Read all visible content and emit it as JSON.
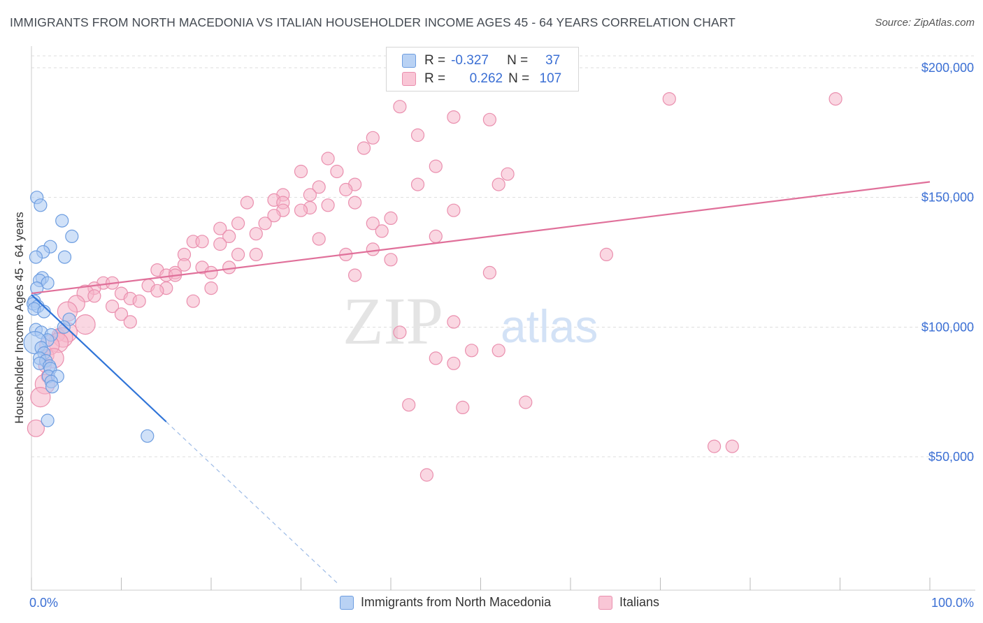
{
  "title": "IMMIGRANTS FROM NORTH MACEDONIA VS ITALIAN HOUSEHOLDER INCOME AGES 45 - 64 YEARS CORRELATION CHART",
  "source": "Source: ZipAtlas.com",
  "watermark": {
    "zip": "ZIP",
    "atlas": "atlas"
  },
  "colors": {
    "blue_fill": "#a9c8f2",
    "blue_stroke": "#6d9de0",
    "blue_line": "#2f74d8",
    "pink_fill": "#f6b7ca",
    "pink_stroke": "#ea8fae",
    "pink_line": "#e0709a",
    "axis_text": "#3b6fd4",
    "grid": "#dddddd"
  },
  "stats": {
    "r_label": "R =",
    "n_label": "N =",
    "series1": {
      "r": "-0.327",
      "n": "37"
    },
    "series2": {
      "r": "0.262",
      "n": "107"
    }
  },
  "chart_data": {
    "type": "scatter",
    "title": "IMMIGRANTS FROM NORTH MACEDONIA VS ITALIAN HOUSEHOLDER INCOME AGES 45 - 64 YEARS CORRELATION CHART",
    "xlabel": "",
    "ylabel": "Householder Income Ages 45 - 64 years",
    "xlim": [
      0,
      100
    ],
    "ylim": [
      0,
      210000
    ],
    "x_tick_labels": [
      "0.0%",
      "100.0%"
    ],
    "y_ticks": [
      50000,
      100000,
      150000,
      200000
    ],
    "y_tick_labels": [
      "$50,000",
      "$100,000",
      "$150,000",
      "$200,000"
    ],
    "grid": true,
    "legend_position": "bottom",
    "series": [
      {
        "name": "Immigrants from North Macedonia",
        "color": "blue",
        "trend": {
          "x0": 0,
          "y0": 112500,
          "x1": 15,
          "y1": 63500,
          "dash_to_x": 34
        },
        "points": [
          {
            "x": 0.6,
            "y": 150000,
            "s": 9
          },
          {
            "x": 1.0,
            "y": 147000,
            "s": 9
          },
          {
            "x": 3.4,
            "y": 141000,
            "s": 9
          },
          {
            "x": 4.5,
            "y": 135000,
            "s": 9
          },
          {
            "x": 2.1,
            "y": 131000,
            "s": 9
          },
          {
            "x": 1.3,
            "y": 129000,
            "s": 9
          },
          {
            "x": 0.5,
            "y": 127000,
            "s": 9
          },
          {
            "x": 3.7,
            "y": 127000,
            "s": 9
          },
          {
            "x": 1.2,
            "y": 119000,
            "s": 9
          },
          {
            "x": 0.9,
            "y": 118000,
            "s": 9
          },
          {
            "x": 1.8,
            "y": 117000,
            "s": 9
          },
          {
            "x": 0.6,
            "y": 115000,
            "s": 9
          },
          {
            "x": 0.3,
            "y": 110000,
            "s": 9
          },
          {
            "x": 0.2,
            "y": 109000,
            "s": 9
          },
          {
            "x": 0.7,
            "y": 108000,
            "s": 9
          },
          {
            "x": 0.3,
            "y": 107000,
            "s": 9
          },
          {
            "x": 1.4,
            "y": 106000,
            "s": 9
          },
          {
            "x": 4.2,
            "y": 103000,
            "s": 9
          },
          {
            "x": 3.6,
            "y": 100000,
            "s": 9
          },
          {
            "x": 0.5,
            "y": 99000,
            "s": 9
          },
          {
            "x": 1.1,
            "y": 98000,
            "s": 9
          },
          {
            "x": 2.2,
            "y": 97000,
            "s": 9
          },
          {
            "x": 1.8,
            "y": 95000,
            "s": 9
          },
          {
            "x": 0.4,
            "y": 94000,
            "s": 16
          },
          {
            "x": 1.1,
            "y": 92000,
            "s": 9
          },
          {
            "x": 1.4,
            "y": 90000,
            "s": 9
          },
          {
            "x": 0.9,
            "y": 88000,
            "s": 9
          },
          {
            "x": 1.6,
            "y": 87000,
            "s": 9
          },
          {
            "x": 0.9,
            "y": 86000,
            "s": 9
          },
          {
            "x": 2.0,
            "y": 85000,
            "s": 9
          },
          {
            "x": 2.1,
            "y": 84000,
            "s": 9
          },
          {
            "x": 1.9,
            "y": 81000,
            "s": 9
          },
          {
            "x": 2.9,
            "y": 81000,
            "s": 9
          },
          {
            "x": 2.2,
            "y": 79000,
            "s": 9
          },
          {
            "x": 2.3,
            "y": 77000,
            "s": 9
          },
          {
            "x": 1.8,
            "y": 64000,
            "s": 9
          },
          {
            "x": 12.9,
            "y": 58000,
            "s": 9
          }
        ]
      },
      {
        "name": "Italians",
        "color": "pink",
        "trend": {
          "x0": 0,
          "y0": 113000,
          "x1": 100,
          "y1": 156000
        },
        "points": [
          {
            "x": 41,
            "y": 185000,
            "s": 9
          },
          {
            "x": 47,
            "y": 181000,
            "s": 9
          },
          {
            "x": 51,
            "y": 180000,
            "s": 9
          },
          {
            "x": 71,
            "y": 188000,
            "s": 9
          },
          {
            "x": 89.5,
            "y": 188000,
            "s": 9
          },
          {
            "x": 43,
            "y": 174000,
            "s": 9
          },
          {
            "x": 38,
            "y": 173000,
            "s": 9
          },
          {
            "x": 37,
            "y": 169000,
            "s": 9
          },
          {
            "x": 33,
            "y": 165000,
            "s": 9
          },
          {
            "x": 45,
            "y": 162000,
            "s": 9
          },
          {
            "x": 30,
            "y": 160000,
            "s": 9
          },
          {
            "x": 34,
            "y": 160000,
            "s": 9
          },
          {
            "x": 53,
            "y": 159000,
            "s": 9
          },
          {
            "x": 36,
            "y": 155000,
            "s": 9
          },
          {
            "x": 43,
            "y": 155000,
            "s": 9
          },
          {
            "x": 52,
            "y": 155000,
            "s": 9
          },
          {
            "x": 32,
            "y": 154000,
            "s": 9
          },
          {
            "x": 35,
            "y": 153000,
            "s": 9
          },
          {
            "x": 28,
            "y": 151000,
            "s": 9
          },
          {
            "x": 31,
            "y": 151000,
            "s": 9
          },
          {
            "x": 27,
            "y": 149000,
            "s": 9
          },
          {
            "x": 24,
            "y": 148000,
            "s": 9
          },
          {
            "x": 28,
            "y": 148000,
            "s": 9
          },
          {
            "x": 36,
            "y": 148000,
            "s": 9
          },
          {
            "x": 33,
            "y": 147000,
            "s": 9
          },
          {
            "x": 31,
            "y": 146000,
            "s": 9
          },
          {
            "x": 28,
            "y": 145000,
            "s": 9
          },
          {
            "x": 30,
            "y": 145000,
            "s": 9
          },
          {
            "x": 47,
            "y": 145000,
            "s": 9
          },
          {
            "x": 27,
            "y": 143000,
            "s": 9
          },
          {
            "x": 40,
            "y": 142000,
            "s": 9
          },
          {
            "x": 23,
            "y": 140000,
            "s": 9
          },
          {
            "x": 26,
            "y": 140000,
            "s": 9
          },
          {
            "x": 38,
            "y": 140000,
            "s": 9
          },
          {
            "x": 21,
            "y": 138000,
            "s": 9
          },
          {
            "x": 39,
            "y": 137000,
            "s": 9
          },
          {
            "x": 25,
            "y": 136000,
            "s": 9
          },
          {
            "x": 22,
            "y": 135000,
            "s": 9
          },
          {
            "x": 32,
            "y": 134000,
            "s": 9
          },
          {
            "x": 45,
            "y": 135000,
            "s": 9
          },
          {
            "x": 18,
            "y": 133000,
            "s": 9
          },
          {
            "x": 19,
            "y": 133000,
            "s": 9
          },
          {
            "x": 21,
            "y": 132000,
            "s": 9
          },
          {
            "x": 38,
            "y": 130000,
            "s": 9
          },
          {
            "x": 17,
            "y": 128000,
            "s": 9
          },
          {
            "x": 23,
            "y": 128000,
            "s": 9
          },
          {
            "x": 25,
            "y": 128000,
            "s": 9
          },
          {
            "x": 35,
            "y": 128000,
            "s": 9
          },
          {
            "x": 64,
            "y": 128000,
            "s": 9
          },
          {
            "x": 40,
            "y": 126000,
            "s": 9
          },
          {
            "x": 17,
            "y": 124000,
            "s": 9
          },
          {
            "x": 19,
            "y": 123000,
            "s": 9
          },
          {
            "x": 22,
            "y": 123000,
            "s": 9
          },
          {
            "x": 14,
            "y": 122000,
            "s": 9
          },
          {
            "x": 16,
            "y": 121000,
            "s": 9
          },
          {
            "x": 20,
            "y": 121000,
            "s": 9
          },
          {
            "x": 15,
            "y": 120000,
            "s": 9
          },
          {
            "x": 51,
            "y": 121000,
            "s": 9
          },
          {
            "x": 16,
            "y": 120000,
            "s": 9
          },
          {
            "x": 36,
            "y": 120000,
            "s": 9
          },
          {
            "x": 8,
            "y": 117000,
            "s": 9
          },
          {
            "x": 9,
            "y": 117000,
            "s": 9
          },
          {
            "x": 13,
            "y": 116000,
            "s": 9
          },
          {
            "x": 15,
            "y": 115000,
            "s": 9
          },
          {
            "x": 20,
            "y": 115000,
            "s": 9
          },
          {
            "x": 7,
            "y": 115000,
            "s": 9
          },
          {
            "x": 14,
            "y": 114000,
            "s": 9
          },
          {
            "x": 10,
            "y": 113000,
            "s": 9
          },
          {
            "x": 6,
            "y": 113000,
            "s": 12
          },
          {
            "x": 7,
            "y": 112000,
            "s": 9
          },
          {
            "x": 11,
            "y": 111000,
            "s": 9
          },
          {
            "x": 12,
            "y": 110000,
            "s": 9
          },
          {
            "x": 18,
            "y": 110000,
            "s": 9
          },
          {
            "x": 5,
            "y": 109000,
            "s": 12
          },
          {
            "x": 9,
            "y": 108000,
            "s": 9
          },
          {
            "x": 4,
            "y": 106000,
            "s": 14
          },
          {
            "x": 10,
            "y": 105000,
            "s": 9
          },
          {
            "x": 11,
            "y": 102000,
            "s": 9
          },
          {
            "x": 6,
            "y": 101000,
            "s": 14
          },
          {
            "x": 47,
            "y": 102000,
            "s": 9
          },
          {
            "x": 41,
            "y": 98000,
            "s": 9
          },
          {
            "x": 4,
            "y": 98000,
            "s": 14
          },
          {
            "x": 3,
            "y": 97000,
            "s": 9
          },
          {
            "x": 3.5,
            "y": 96000,
            "s": 14
          },
          {
            "x": 3,
            "y": 94000,
            "s": 14
          },
          {
            "x": 2,
            "y": 93000,
            "s": 14
          },
          {
            "x": 49,
            "y": 91000,
            "s": 9
          },
          {
            "x": 52,
            "y": 91000,
            "s": 9
          },
          {
            "x": 1.8,
            "y": 89000,
            "s": 9
          },
          {
            "x": 2.5,
            "y": 88000,
            "s": 14
          },
          {
            "x": 45,
            "y": 88000,
            "s": 9
          },
          {
            "x": 47,
            "y": 86000,
            "s": 9
          },
          {
            "x": 1.5,
            "y": 85000,
            "s": 9
          },
          {
            "x": 1.8,
            "y": 81000,
            "s": 9
          },
          {
            "x": 1.5,
            "y": 78000,
            "s": 14
          },
          {
            "x": 1,
            "y": 73000,
            "s": 14
          },
          {
            "x": 42,
            "y": 70000,
            "s": 9
          },
          {
            "x": 55,
            "y": 71000,
            "s": 9
          },
          {
            "x": 48,
            "y": 69000,
            "s": 9
          },
          {
            "x": 0.5,
            "y": 61000,
            "s": 12
          },
          {
            "x": 76,
            "y": 54000,
            "s": 9
          },
          {
            "x": 78,
            "y": 54000,
            "s": 9
          },
          {
            "x": 44,
            "y": 43000,
            "s": 9
          }
        ]
      }
    ]
  },
  "legend": {
    "item1": "Immigrants from North Macedonia",
    "item2": "Italians"
  }
}
